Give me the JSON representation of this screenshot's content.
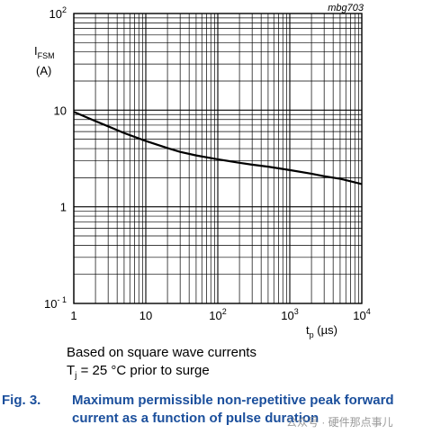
{
  "figure_id": "mbg703",
  "chart_data": {
    "type": "line",
    "xscale": "log",
    "yscale": "log",
    "xlim": [
      1,
      10000
    ],
    "ylim": [
      0.1,
      100
    ],
    "grid": true,
    "xlabel": {
      "main": "t",
      "sub": "p",
      "unit": " (µs)"
    },
    "ylabel": {
      "main": "I",
      "sub": "FSM",
      "unit": "(A)"
    },
    "x_ticks": [
      {
        "value": 1,
        "base": "1",
        "exp": ""
      },
      {
        "value": 10,
        "base": "10",
        "exp": ""
      },
      {
        "value": 100,
        "base": "10",
        "exp": "2"
      },
      {
        "value": 1000,
        "base": "10",
        "exp": "3"
      },
      {
        "value": 10000,
        "base": "10",
        "exp": "4"
      }
    ],
    "y_ticks": [
      {
        "value": 0.1,
        "base": "10",
        "exp": "- 1"
      },
      {
        "value": 1,
        "base": "1",
        "exp": ""
      },
      {
        "value": 10,
        "base": "10",
        "exp": ""
      },
      {
        "value": 100,
        "base": "10",
        "exp": "2"
      }
    ],
    "series": [
      {
        "x": [
          1,
          2,
          3,
          5,
          10,
          20,
          30,
          50,
          100,
          200,
          300,
          500,
          1000,
          2000,
          3000,
          5000,
          10000
        ],
        "y": [
          9.6,
          7.7,
          6.8,
          5.8,
          4.8,
          4.05,
          3.7,
          3.4,
          3.1,
          2.85,
          2.73,
          2.6,
          2.4,
          2.2,
          2.07,
          1.95,
          1.72
        ]
      }
    ]
  },
  "notes": {
    "line1": "Based on square wave currents",
    "line2_pre": "T",
    "line2_sub": "j",
    "line2_post": " = 25 °C prior to surge"
  },
  "caption": {
    "number": "Fig. 3.",
    "text": "Maximum permissible non-repetitive peak forward current as a function of pulse duration"
  },
  "watermark": "公众号 · 硬件那点事儿"
}
